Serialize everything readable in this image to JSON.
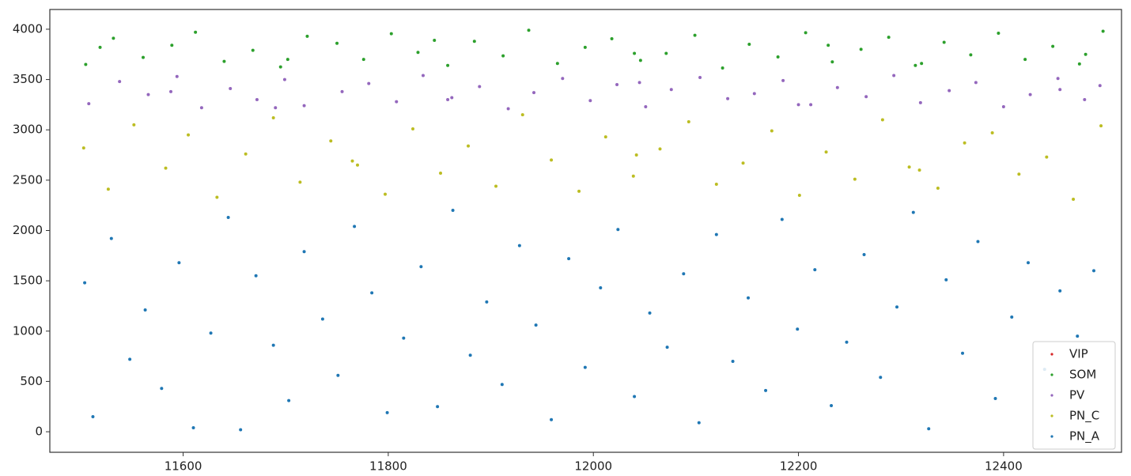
{
  "chart_data": {
    "type": "scatter",
    "xlim": [
      11470,
      12515
    ],
    "ylim": [
      -204,
      4196
    ],
    "xticks": [
      11600,
      11800,
      12000,
      12200,
      12400
    ],
    "yticks": [
      0,
      500,
      1000,
      1500,
      2000,
      2500,
      3000,
      3500,
      4000
    ],
    "legend": "lower right",
    "series": [
      {
        "name": "VIP",
        "color": "#d62728",
        "x": [],
        "y": []
      },
      {
        "name": "SOM",
        "color": "#2ca02c",
        "x": [
          11505,
          11532,
          11561,
          11589,
          11612,
          11640,
          11668,
          11695,
          11721,
          11750,
          11776,
          11803,
          11829,
          11858,
          11884,
          11912,
          11937,
          11965,
          11992,
          12018,
          12046,
          12071,
          12099,
          12126,
          12152,
          12180,
          12207,
          12233,
          12261,
          12288,
          12314,
          12342,
          12368,
          12395,
          12421,
          12448,
          12474,
          12497,
          11519,
          11702,
          11845,
          12040,
          12229,
          12320,
          12480
        ],
        "y": [
          3650,
          3910,
          3720,
          3840,
          3970,
          3680,
          3790,
          3625,
          3930,
          3860,
          3700,
          3955,
          3770,
          3640,
          3880,
          3735,
          3990,
          3660,
          3820,
          3905,
          3690,
          3760,
          3940,
          3615,
          3850,
          3725,
          3965,
          3675,
          3800,
          3920,
          3640,
          3870,
          3745,
          3960,
          3700,
          3830,
          3655,
          3980,
          3820,
          3700,
          3890,
          3760,
          3840,
          3660,
          3750
        ]
      },
      {
        "name": "PV",
        "color": "#9467bd",
        "x": [
          11508,
          11538,
          11566,
          11594,
          11618,
          11646,
          11672,
          11699,
          11718,
          11755,
          11781,
          11808,
          11834,
          11862,
          11889,
          11917,
          11942,
          11970,
          11997,
          12023,
          12051,
          12076,
          12104,
          12131,
          12157,
          12185,
          12212,
          12238,
          12266,
          12293,
          12319,
          12347,
          12373,
          12400,
          12426,
          12453,
          12479,
          12494,
          11588,
          11690,
          11858,
          12045,
          12200,
          12455
        ],
        "y": [
          3260,
          3480,
          3350,
          3530,
          3220,
          3410,
          3300,
          3500,
          3240,
          3380,
          3460,
          3280,
          3540,
          3320,
          3430,
          3210,
          3370,
          3510,
          3290,
          3450,
          3230,
          3400,
          3520,
          3310,
          3360,
          3490,
          3250,
          3420,
          3330,
          3540,
          3270,
          3390,
          3470,
          3230,
          3350,
          3510,
          3300,
          3440,
          3380,
          3220,
          3300,
          3470,
          3250,
          3400
        ]
      },
      {
        "name": "PN_C",
        "color": "#bcbd22",
        "x": [
          11503,
          11527,
          11552,
          11583,
          11605,
          11633,
          11661,
          11688,
          11714,
          11744,
          11770,
          11797,
          11824,
          11851,
          11878,
          11905,
          11931,
          11959,
          11986,
          12012,
          12039,
          12065,
          12093,
          12120,
          12146,
          12174,
          12201,
          12227,
          12255,
          12282,
          12308,
          12336,
          12362,
          12389,
          12415,
          12442,
          12468,
          12495,
          11765,
          12042,
          12318
        ],
        "y": [
          2820,
          2410,
          3050,
          2620,
          2950,
          2330,
          2760,
          3120,
          2480,
          2890,
          2650,
          2360,
          3010,
          2570,
          2840,
          2440,
          3150,
          2700,
          2390,
          2930,
          2540,
          2810,
          3080,
          2460,
          2670,
          2990,
          2350,
          2780,
          2510,
          3100,
          2630,
          2420,
          2870,
          2970,
          2560,
          2730,
          2310,
          3040,
          2690,
          2750,
          2600
        ]
      },
      {
        "name": "PN_A",
        "color": "#1f77b4",
        "x": [
          11504,
          11512,
          11530,
          11548,
          11563,
          11579,
          11596,
          11610,
          11627,
          11644,
          11656,
          11671,
          11688,
          11703,
          11718,
          11736,
          11751,
          11767,
          11784,
          11799,
          11815,
          11832,
          11848,
          11863,
          11880,
          11896,
          11911,
          11928,
          11944,
          11959,
          11976,
          11992,
          12007,
          12024,
          12040,
          12055,
          12072,
          12088,
          12103,
          12120,
          12136,
          12151,
          12168,
          12184,
          12199,
          12216,
          12232,
          12247,
          12264,
          12280,
          12296,
          12312,
          12327,
          12344,
          12360,
          12375,
          12392,
          12408,
          12424,
          12440,
          12455,
          12472,
          12488
        ],
        "y": [
          1480,
          150,
          1920,
          720,
          1210,
          430,
          1680,
          40,
          980,
          2130,
          20,
          1550,
          860,
          310,
          1790,
          1120,
          560,
          2040,
          1380,
          190,
          930,
          1640,
          250,
          2200,
          760,
          1290,
          470,
          1850,
          1060,
          120,
          1720,
          640,
          1430,
          2010,
          350,
          1180,
          840,
          1570,
          90,
          1960,
          700,
          1330,
          410,
          2110,
          1020,
          1610,
          260,
          890,
          1760,
          540,
          1240,
          2180,
          30,
          1510,
          780,
          1890,
          330,
          1140,
          1680,
          620,
          1400,
          950,
          1600
        ]
      }
    ]
  }
}
